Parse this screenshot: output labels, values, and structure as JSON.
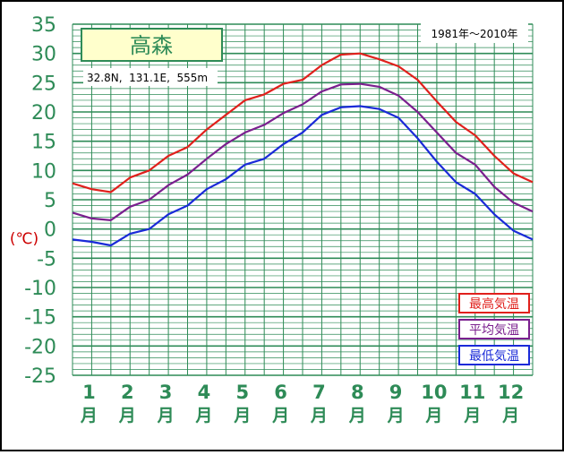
{
  "chart_data": {
    "type": "line",
    "title": "高森",
    "subtitle": "32.8N,  131.1E,  555m",
    "period": "1981年～2010年",
    "ylabel": "(℃)",
    "ylim": [
      -25,
      35
    ],
    "yticks": [
      35,
      30,
      25,
      20,
      15,
      10,
      5,
      0,
      -5,
      -10,
      -15,
      -20,
      -25
    ],
    "months": [
      "1",
      "2",
      "3",
      "4",
      "5",
      "6",
      "7",
      "8",
      "9",
      "10",
      "11",
      "12"
    ],
    "month_unit": "月",
    "grid": true,
    "legend_position": "bottom-right",
    "colors": {
      "axis_text": "#2e8b57",
      "grid": "#2e8b57",
      "title_box_fill": "#ffffcc",
      "ylabel": "#cc0000",
      "frame": "#000000"
    },
    "x": [
      0,
      0.5,
      1,
      1.5,
      2,
      2.5,
      3,
      3.5,
      4,
      4.5,
      5,
      5.5,
      6,
      6.5,
      7,
      7.5,
      8,
      8.5,
      9,
      9.5,
      10,
      10.5,
      11,
      11.5,
      12
    ],
    "series": [
      {
        "name": "最高気温",
        "color": "#e0201c",
        "values": [
          7.8,
          6.8,
          6.3,
          8.8,
          10.0,
          12.5,
          14.0,
          17.0,
          19.5,
          22.0,
          23.0,
          24.8,
          25.5,
          28.0,
          29.8,
          30.0,
          29.0,
          27.8,
          25.5,
          21.8,
          18.3,
          16.0,
          12.5,
          9.5,
          8.0
        ]
      },
      {
        "name": "平均気温",
        "color": "#7a1f8e",
        "values": [
          2.8,
          1.8,
          1.5,
          3.8,
          5.0,
          7.5,
          9.3,
          12.0,
          14.5,
          16.5,
          17.8,
          19.8,
          21.3,
          23.5,
          24.7,
          24.8,
          24.3,
          22.8,
          20.0,
          16.5,
          13.0,
          11.0,
          7.2,
          4.5,
          3.0
        ]
      },
      {
        "name": "最低気温",
        "color": "#1a2ad8",
        "values": [
          -1.8,
          -2.2,
          -2.8,
          -0.8,
          0.0,
          2.5,
          4.0,
          6.8,
          8.5,
          11.0,
          12.0,
          14.5,
          16.5,
          19.5,
          20.8,
          21.0,
          20.5,
          19.0,
          15.5,
          11.5,
          8.0,
          6.0,
          2.5,
          -0.3,
          -1.8
        ]
      }
    ]
  }
}
